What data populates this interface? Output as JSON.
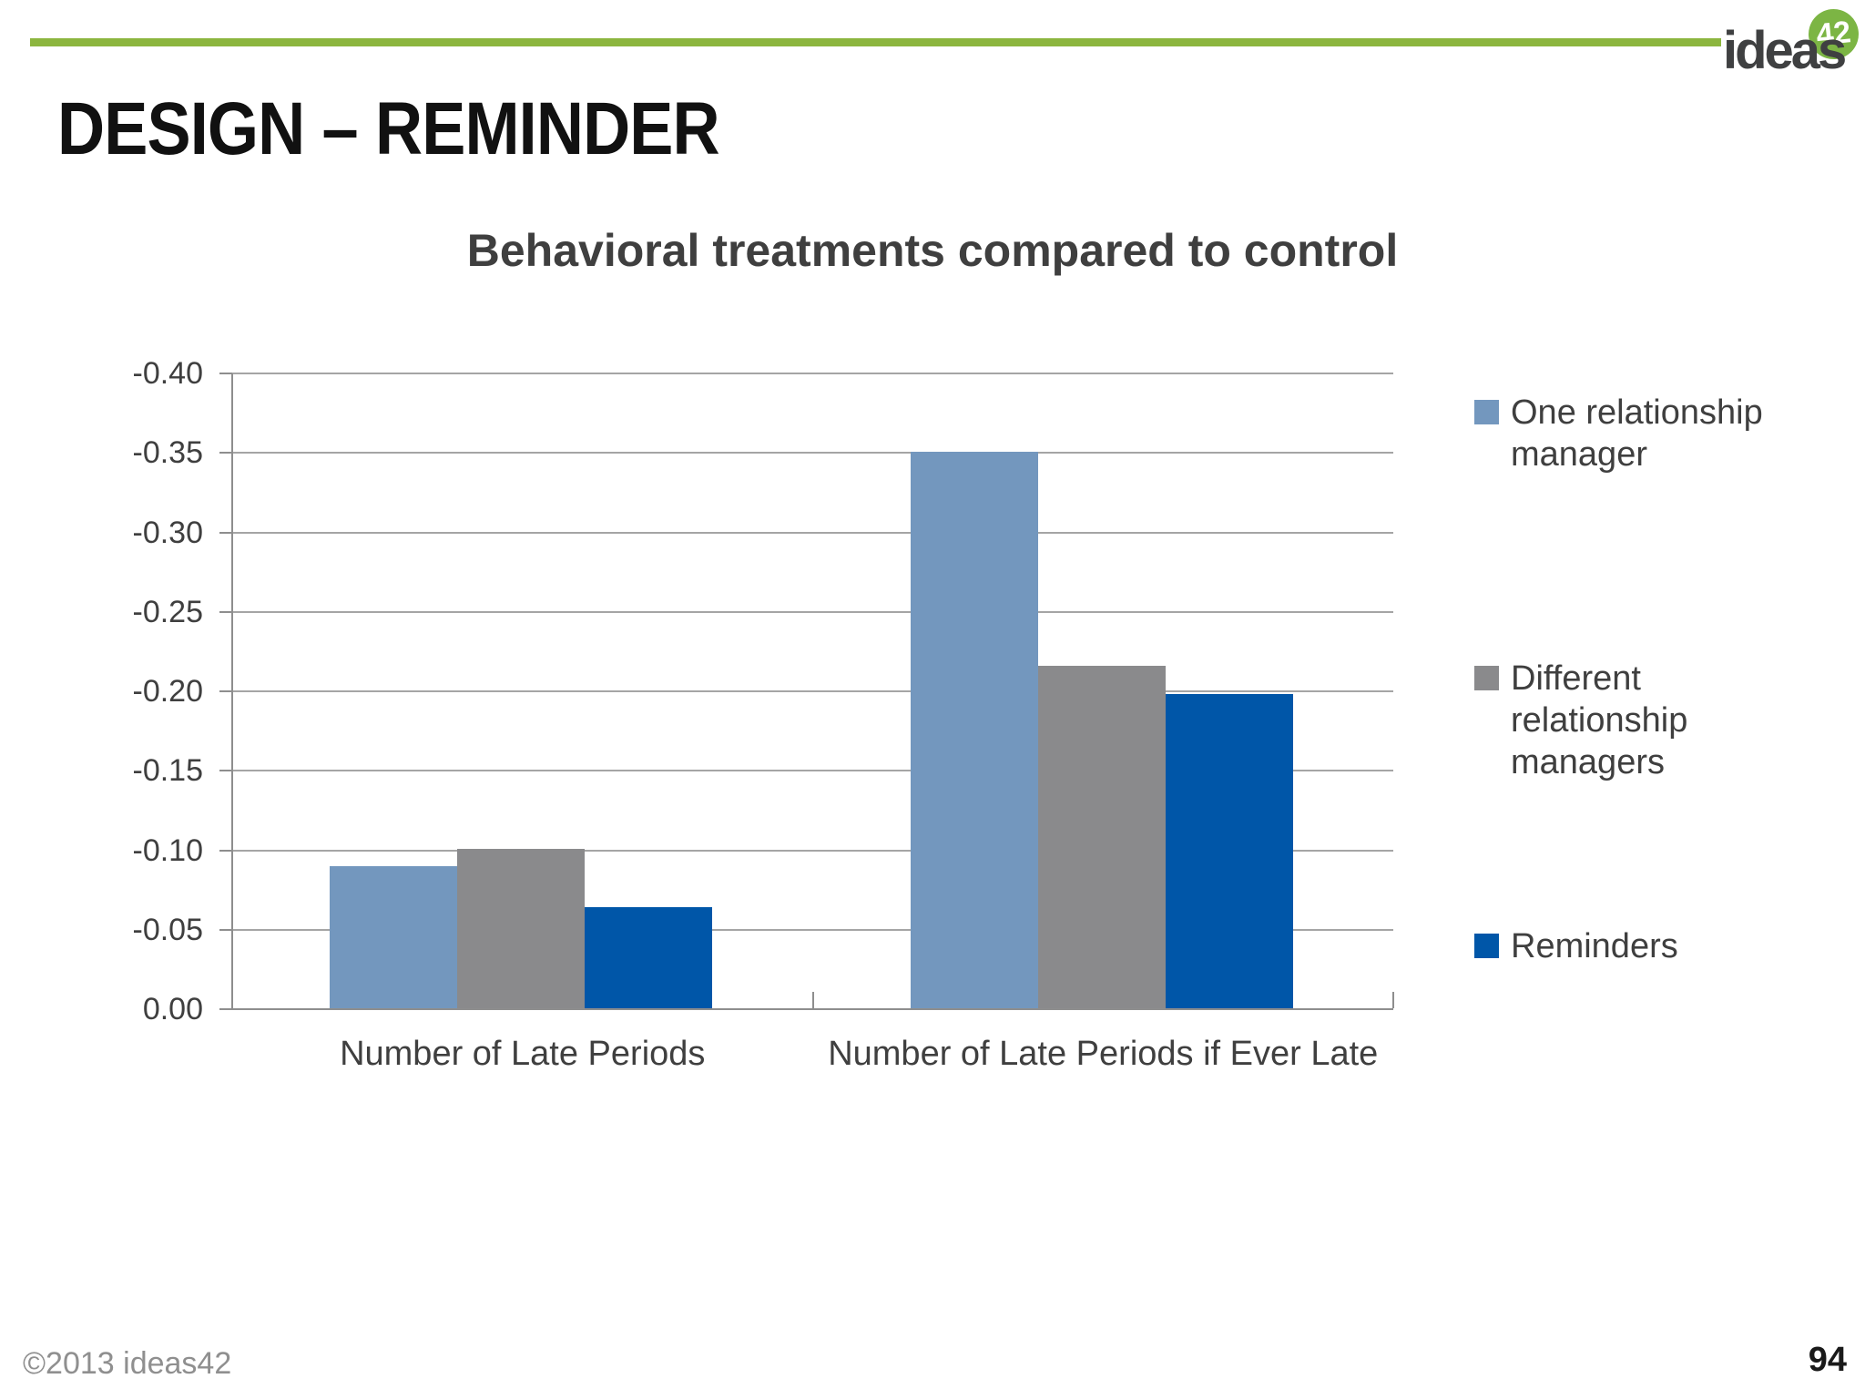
{
  "header": {
    "title": "DESIGN – REMINDER",
    "accent_color": "#8cb63f",
    "logo": {
      "text": "ideas",
      "badge": "42",
      "badge_color": "#7cb544"
    }
  },
  "footer": {
    "copyright": "©2013 ideas42",
    "page_number": "94"
  },
  "chart_data": {
    "type": "bar",
    "title": "Behavioral treatments compared to control",
    "categories": [
      "Number of Late Periods",
      "Number of Late Periods if Ever Late"
    ],
    "series": [
      {
        "name": "One relationship manager",
        "color": "#7397be",
        "values": [
          -0.09,
          -0.351
        ]
      },
      {
        "name": "Different relationship managers",
        "color": "#8a8a8c",
        "values": [
          -0.101,
          -0.216
        ]
      },
      {
        "name": "Reminders",
        "color": "#0056a8",
        "values": [
          -0.064,
          -0.198
        ]
      }
    ],
    "xlabel": "",
    "ylabel": "",
    "ylim": [
      0.0,
      -0.4
    ],
    "y_tick_step": -0.05,
    "y_axis_reversed": true,
    "grid": true,
    "legend_position": "right",
    "grid_color": "#a5a5a5",
    "axis_color": "#8e8e8e",
    "text_color": "#3f3f3f"
  }
}
